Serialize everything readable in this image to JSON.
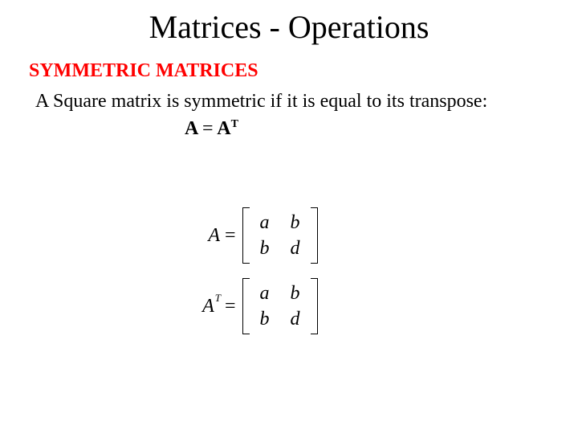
{
  "title": "Matrices - Operations",
  "subtitle": {
    "text": "SYMMETRIC MATRICES",
    "color": "#ff0000"
  },
  "body": "A Square matrix is symmetric if it is equal to its transpose:",
  "formula": {
    "left": "A",
    "eq": "=",
    "right": "A",
    "sup": "T"
  },
  "matrices": {
    "A": {
      "lhs": "A",
      "sup": "",
      "cells": [
        [
          "a",
          "b"
        ],
        [
          "b",
          "d"
        ]
      ]
    },
    "AT": {
      "lhs": "A",
      "sup": "T",
      "cells": [
        [
          "a",
          "b"
        ],
        [
          "b",
          "d"
        ]
      ]
    }
  },
  "colors": {
    "title": "#000000",
    "body": "#000000",
    "background": "#ffffff"
  },
  "fontsizes": {
    "title": 40,
    "subtitle": 24,
    "body": 24,
    "formula": 24,
    "matrix": 24
  }
}
